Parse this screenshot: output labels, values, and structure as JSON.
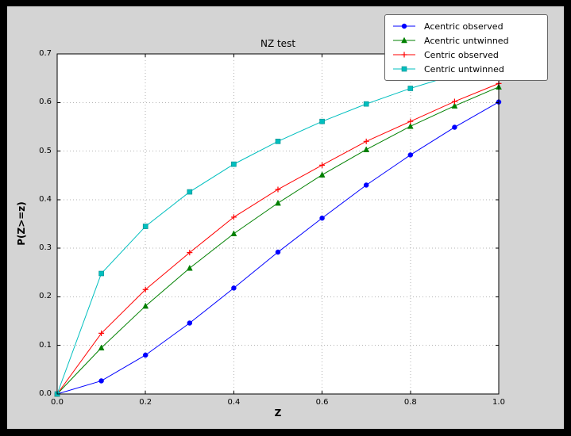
{
  "window": {
    "frame_color": "#000000"
  },
  "figure": {
    "background": "#d4d4d4"
  },
  "chart_data": {
    "type": "line",
    "title": "NZ test",
    "xlabel": "Z",
    "ylabel": "P(Z>=z)",
    "xlim": [
      0.0,
      1.0
    ],
    "ylim": [
      0.0,
      0.7
    ],
    "xticks": [
      "0.0",
      "0.2",
      "0.4",
      "0.6",
      "0.8",
      "1.0"
    ],
    "yticks": [
      "0.0",
      "0.1",
      "0.2",
      "0.3",
      "0.4",
      "0.5",
      "0.6",
      "0.7"
    ],
    "grid": true,
    "grid_style": "dotted",
    "grid_color": "#b3b3b3",
    "plot_bg": "#ffffff",
    "axes_edge_color": "#000000",
    "legend_position": "upper right",
    "x": [
      0.0,
      0.1,
      0.2,
      0.3,
      0.4,
      0.5,
      0.6,
      0.7,
      0.8,
      0.9,
      1.0
    ],
    "series": [
      {
        "name": "Acentric observed",
        "color": "#0000ff",
        "marker": "circle",
        "values": [
          0.0,
          0.027,
          0.08,
          0.146,
          0.218,
          0.292,
          0.362,
          0.43,
          0.492,
          0.549,
          0.601
        ]
      },
      {
        "name": "Acentric untwinned",
        "color": "#008000",
        "marker": "triangle",
        "values": [
          0.0,
          0.095,
          0.181,
          0.259,
          0.33,
          0.393,
          0.451,
          0.503,
          0.551,
          0.593,
          0.632
        ]
      },
      {
        "name": "Centric observed",
        "color": "#ff0000",
        "marker": "plus",
        "values": [
          0.0,
          0.125,
          0.215,
          0.291,
          0.364,
          0.421,
          0.471,
          0.52,
          0.561,
          0.602,
          0.639
        ]
      },
      {
        "name": "Centric untwinned",
        "color": "#00bfbf",
        "marker": "square",
        "values": [
          0.0,
          0.248,
          0.345,
          0.416,
          0.473,
          0.52,
          0.561,
          0.597,
          0.629,
          0.657,
          0.683
        ]
      }
    ]
  }
}
